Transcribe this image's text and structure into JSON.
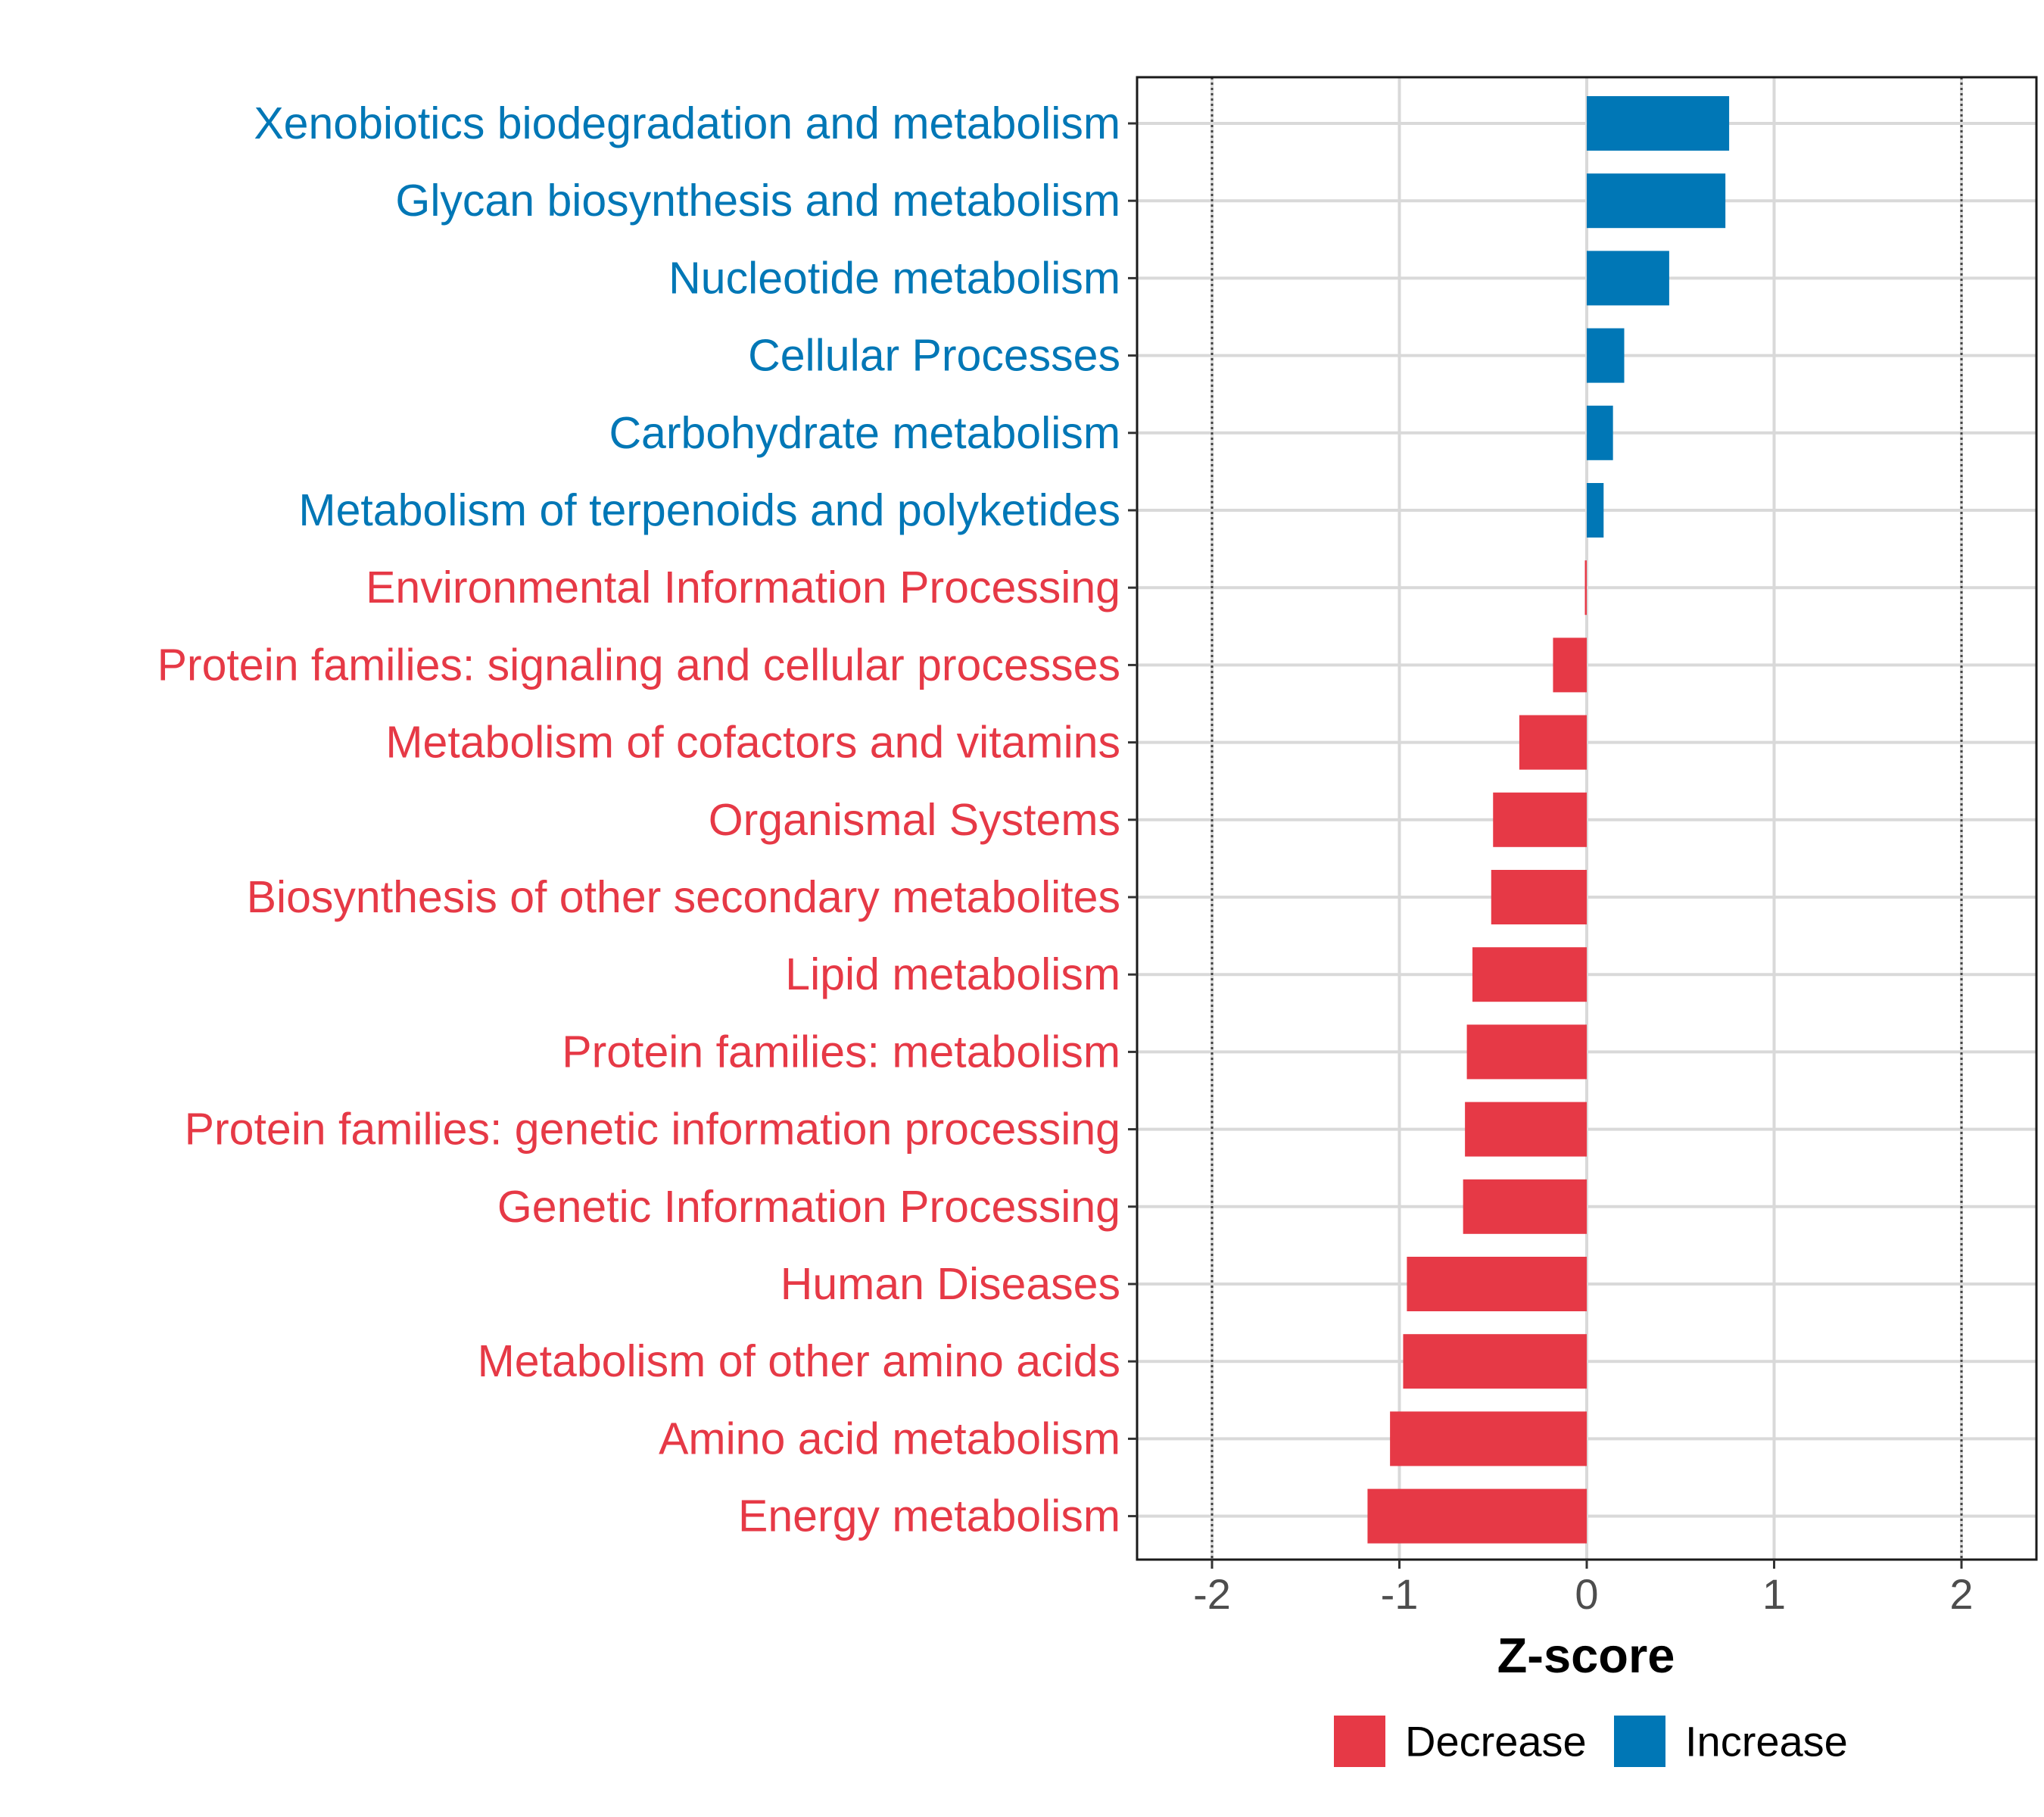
{
  "chart_data": {
    "type": "bar",
    "orientation": "horizontal",
    "title": "",
    "xlabel": "Z-score",
    "ylabel": "",
    "xlim": [
      -2.4,
      2.4
    ],
    "x_ticks": [
      -2,
      -1,
      0,
      1,
      2
    ],
    "reference_lines": [
      -2,
      2
    ],
    "grid": true,
    "legend_position": "bottom",
    "colors": {
      "Decrease": "#e63946",
      "Increase": "#0077b6"
    },
    "legend": [
      {
        "name": "Decrease",
        "color": "#e63946"
      },
      {
        "name": "Increase",
        "color": "#0077b6"
      }
    ],
    "categories": [
      "Xenobiotics biodegradation and metabolism",
      "Glycan biosynthesis and metabolism",
      "Nucleotide metabolism",
      "Cellular Processes",
      "Carbohydrate metabolism",
      "Metabolism of terpenoids and polyketides",
      "Environmental Information Processing",
      "Protein families: signaling and cellular processes",
      "Metabolism of cofactors and vitamins",
      "Organismal Systems",
      "Biosynthesis of other secondary metabolites",
      "Lipid metabolism",
      "Protein families: metabolism",
      "Protein families: genetic information processing",
      "Genetic Information Processing",
      "Human Diseases",
      "Metabolism of other amino acids",
      "Amino acid metabolism",
      "Energy metabolism"
    ],
    "values": [
      0.76,
      0.74,
      0.44,
      0.2,
      0.14,
      0.09,
      -0.01,
      -0.18,
      -0.36,
      -0.5,
      -0.51,
      -0.61,
      -0.64,
      -0.65,
      -0.66,
      -0.96,
      -0.98,
      -1.05,
      -1.17
    ],
    "groups": [
      "Increase",
      "Increase",
      "Increase",
      "Increase",
      "Increase",
      "Increase",
      "Decrease",
      "Decrease",
      "Decrease",
      "Decrease",
      "Decrease",
      "Decrease",
      "Decrease",
      "Decrease",
      "Decrease",
      "Decrease",
      "Decrease",
      "Decrease",
      "Decrease"
    ]
  }
}
